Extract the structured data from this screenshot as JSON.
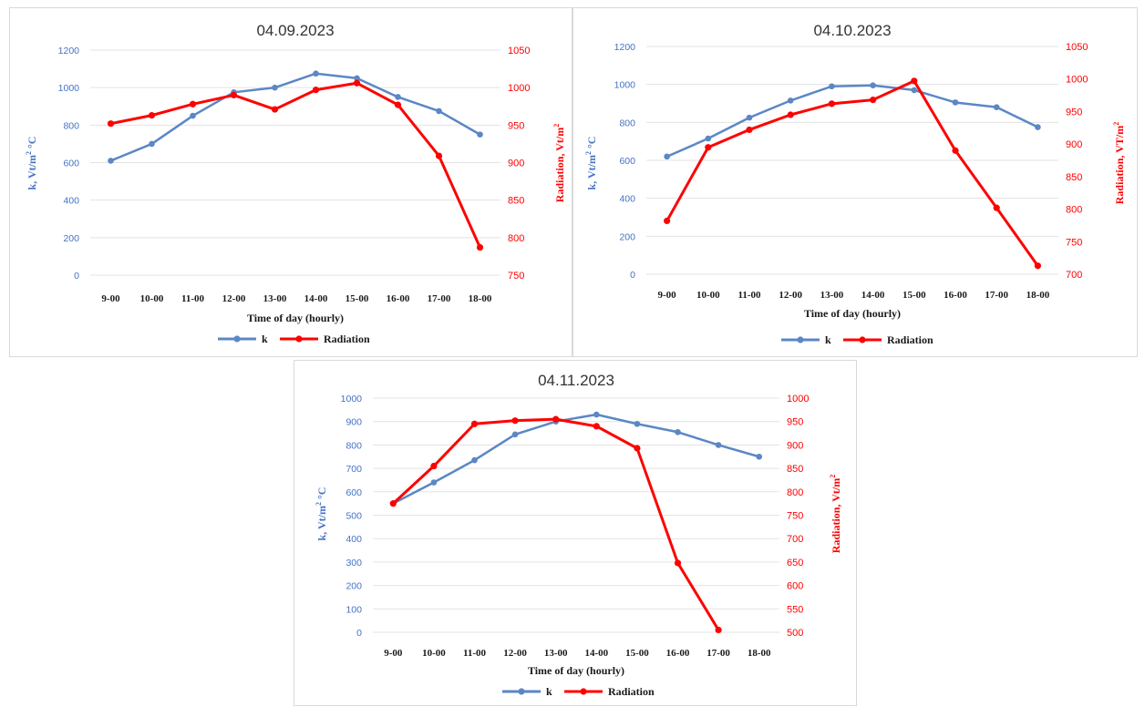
{
  "chart_data": [
    {
      "type": "line",
      "title": "04.09.2023",
      "xlabel": "Time of day (hourly)",
      "ylabel_left_main": "k, Vt/m",
      "ylabel_left_sup": "2",
      "ylabel_left_tail": " °C",
      "ylabel_right_main": "Radiation,  Vt/m",
      "ylabel_right_sup": "2",
      "categories": [
        "9-00",
        "10-00",
        "11-00",
        "12-00",
        "13-00",
        "14-00",
        "15-00",
        "16-00",
        "17-00",
        "18-00"
      ],
      "y_left": {
        "min": 0,
        "max": 1200,
        "step": 200,
        "ticks": [
          "0",
          "200",
          "400",
          "600",
          "800",
          "1000",
          "1200"
        ]
      },
      "y_right": {
        "min": 750,
        "max": 1050,
        "step": 50,
        "ticks": [
          "750",
          "800",
          "850",
          "900",
          "950",
          "1000",
          "1050"
        ]
      },
      "grid": true,
      "legend_position": "bottom",
      "series": [
        {
          "name": "k",
          "axis": "left",
          "color": "#5b87c5",
          "values": [
            610,
            700,
            850,
            975,
            1000,
            1075,
            1050,
            950,
            875,
            750
          ]
        },
        {
          "name": "Radiation",
          "axis": "right",
          "color": "#ff0000",
          "values": [
            952,
            963,
            978,
            990,
            971,
            997,
            1006,
            977,
            909,
            787
          ]
        }
      ]
    },
    {
      "type": "line",
      "title": "04.10.2023",
      "xlabel": "Time of day (hourly)",
      "ylabel_left_main": "k, Vt/m",
      "ylabel_left_sup": "2",
      "ylabel_left_tail": " °C",
      "ylabel_right_main": "Radiation,  VT/m",
      "ylabel_right_sup": "2",
      "categories": [
        "9-00",
        "10-00",
        "11-00",
        "12-00",
        "13-00",
        "14-00",
        "15-00",
        "16-00",
        "17-00",
        "18-00"
      ],
      "y_left": {
        "min": 0,
        "max": 1200,
        "step": 200,
        "ticks": [
          "0",
          "200",
          "400",
          "600",
          "800",
          "1000",
          "1200"
        ]
      },
      "y_right": {
        "min": 700,
        "max": 1050,
        "step": 50,
        "ticks": [
          "700",
          "750",
          "800",
          "850",
          "900",
          "950",
          "1000",
          "1050"
        ]
      },
      "grid": true,
      "legend_position": "bottom",
      "series": [
        {
          "name": "k",
          "axis": "left",
          "color": "#5b87c5",
          "values": [
            620,
            715,
            825,
            915,
            990,
            995,
            970,
            905,
            880,
            775
          ]
        },
        {
          "name": "Radiation",
          "axis": "right",
          "color": "#ff0000",
          "values": [
            782,
            895,
            922,
            945,
            962,
            968,
            997,
            890,
            802,
            713
          ]
        }
      ]
    },
    {
      "type": "line",
      "title": "04.11.2023",
      "xlabel": "Time of day (hourly)",
      "ylabel_left_main": "k, Vt/m",
      "ylabel_left_sup": "2",
      "ylabel_left_tail": " °C",
      "ylabel_right_main": "Radiation,  Vt/m",
      "ylabel_right_sup": "2",
      "categories": [
        "9-00",
        "10-00",
        "11-00",
        "12-00",
        "13-00",
        "14-00",
        "15-00",
        "16-00",
        "17-00",
        "18-00"
      ],
      "y_left": {
        "min": 0,
        "max": 1000,
        "step": 100,
        "ticks": [
          "0",
          "100",
          "200",
          "300",
          "400",
          "500",
          "600",
          "700",
          "800",
          "900",
          "1000"
        ]
      },
      "y_right": {
        "min": 500,
        "max": 1000,
        "step": 50,
        "ticks": [
          "500",
          "550",
          "600",
          "650",
          "700",
          "750",
          "800",
          "850",
          "900",
          "950",
          "1000"
        ]
      },
      "grid": true,
      "legend_position": "bottom",
      "series": [
        {
          "name": "k",
          "axis": "left",
          "color": "#5b87c5",
          "values": [
            550,
            640,
            735,
            845,
            900,
            930,
            890,
            855,
            800,
            750
          ]
        },
        {
          "name": "Radiation",
          "axis": "right",
          "color": "#ff0000",
          "values": [
            775,
            855,
            945,
            952,
            955,
            940,
            893,
            648,
            505,
            null
          ]
        }
      ]
    }
  ]
}
